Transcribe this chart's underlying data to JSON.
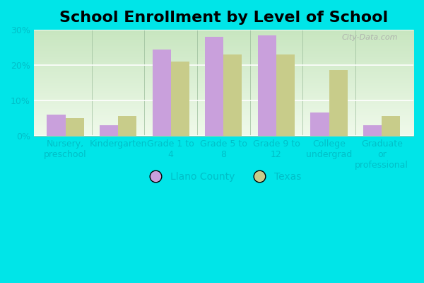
{
  "title": "School Enrollment by Level of School",
  "categories": [
    "Nursery,\npreschool",
    "Kindergarten",
    "Grade 1 to\n4",
    "Grade 5 to\n8",
    "Grade 9 to\n12",
    "College\nundergrad",
    "Graduate\nor\nprofessional"
  ],
  "llano_values": [
    6.0,
    3.0,
    24.5,
    28.0,
    28.5,
    6.5,
    3.0
  ],
  "texas_values": [
    5.0,
    5.5,
    21.0,
    23.0,
    23.0,
    18.5,
    5.5
  ],
  "llano_color": "#c9a0dc",
  "texas_color": "#c8cc8a",
  "background_outer": "#00e5e8",
  "gradient_top": "#c8e6c0",
  "gradient_bottom": "#f0f8ee",
  "tick_label_color": "#00bfc8",
  "ylim": [
    0,
    30
  ],
  "yticks": [
    0,
    10,
    20,
    30
  ],
  "ytick_labels": [
    "0%",
    "10%",
    "20%",
    "30%"
  ],
  "legend_llano": "Llano County",
  "legend_texas": "Texas",
  "bar_width": 0.35,
  "title_fontsize": 16,
  "axis_fontsize": 9,
  "legend_fontsize": 10,
  "watermark": "City-Data.com"
}
